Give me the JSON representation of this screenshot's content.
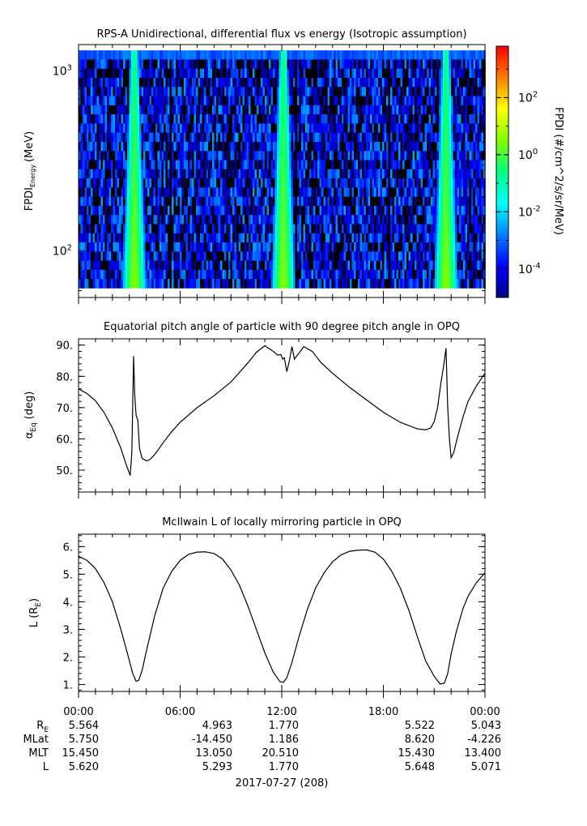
{
  "chart_data": [
    {
      "type": "heatmap",
      "title": "RPS-A Unidirectional, differential flux vs energy (Isotropic assumption)",
      "ylabel_main": "FPDI",
      "ylabel_sub": "Energy",
      "ylabel_unit": "(MeV)",
      "yscale": "log",
      "ylim": [
        55,
        1400
      ],
      "yticks": [
        {
          "value": 100,
          "base": "10",
          "exp": "2"
        },
        {
          "value": 1000,
          "base": "10",
          "exp": "3"
        }
      ],
      "colorbar": {
        "label": "FPDI (#/cm^2/s/sr/MeV)",
        "scale": "log",
        "range_exp": [
          -5,
          3.8
        ],
        "ticks": [
          {
            "exp": -4,
            "base": "10",
            "label_exp": "-4"
          },
          {
            "exp": -2,
            "base": "10",
            "label_exp": "-2"
          },
          {
            "exp": 0,
            "base": "10",
            "label_exp": "0"
          },
          {
            "exp": 2,
            "base": "10",
            "label_exp": "2"
          }
        ],
        "colormap": [
          "#000080",
          "#0000ff",
          "#0080ff",
          "#00ffff",
          "#00ff80",
          "#80ff00",
          "#ffff00",
          "#ff8000",
          "#ff0000"
        ]
      },
      "features": [
        {
          "name": "radiation belt pass 1",
          "center_hour": 3.3,
          "peak_exp": 0.5
        },
        {
          "name": "radiation belt pass 2",
          "center_hour": 12.1,
          "peak_exp": 0.5
        },
        {
          "name": "radiation belt pass 3",
          "center_hour": 21.7,
          "peak_exp": 0.5
        }
      ],
      "noise_exp_range": [
        -5,
        -2.5
      ]
    },
    {
      "type": "line",
      "title": "Equatorial pitch angle of particle with 90 degree pitch angle in OPQ",
      "ylabel": "α",
      "ylabel_sub": "Eq",
      "ylabel_unit": "(deg)",
      "ylim": [
        43,
        92
      ],
      "yticks": [
        "50.",
        "60.",
        "70.",
        "80.",
        "90."
      ],
      "ytick_values": [
        50,
        60,
        70,
        80,
        90
      ],
      "series": [
        {
          "x": [
            0,
            0.5,
            1.0,
            1.5,
            2.0,
            2.5,
            2.8,
            3.05,
            3.15,
            3.25,
            3.32,
            3.4,
            3.5,
            3.6,
            3.75,
            4.0,
            4.2,
            4.5,
            5.0,
            5.5,
            6.0,
            7.0,
            8.0,
            9.0,
            10.0,
            10.5,
            11.0,
            11.5,
            11.75,
            11.95,
            12.05,
            12.15,
            12.3,
            12.45,
            12.6,
            12.75,
            12.85,
            13.0,
            13.3,
            13.8,
            14.3,
            15.0,
            16.0,
            17.0,
            18.0,
            19.0,
            20.0,
            20.5,
            20.8,
            21.0,
            21.2,
            21.4,
            21.55,
            21.7,
            21.8,
            21.9,
            22.0,
            22.15,
            22.35,
            22.7,
            23.0,
            23.5,
            24.0
          ],
          "y": [
            76.0,
            74.5,
            72.2,
            68.5,
            63.5,
            57.0,
            52.0,
            48.3,
            56.0,
            86.5,
            74.0,
            67.5,
            66.0,
            57.0,
            53.8,
            53.0,
            53.3,
            55.0,
            58.8,
            62.3,
            65.3,
            70.0,
            73.8,
            78.2,
            84.3,
            87.7,
            89.8,
            88.0,
            86.8,
            87.0,
            85.5,
            86.0,
            81.5,
            85.0,
            89.5,
            85.5,
            86.3,
            87.3,
            89.5,
            88.0,
            84.5,
            81.0,
            76.5,
            72.5,
            68.5,
            65.3,
            63.2,
            62.9,
            63.5,
            65.5,
            70.0,
            78.0,
            83.0,
            89.0,
            70.0,
            60.0,
            54.0,
            55.5,
            60.0,
            67.0,
            72.0,
            77.0,
            81.0
          ]
        }
      ]
    },
    {
      "type": "line",
      "title": "McIlwain L of locally mirroring particle in OPQ",
      "ylabel": "L (R",
      "ylabel_sub": "E",
      "ylabel_unit": ")",
      "ylim": [
        0.75,
        6.45
      ],
      "yticks": [
        "1.",
        "2.",
        "3.",
        "4.",
        "5.",
        "6."
      ],
      "ytick_values": [
        1,
        2,
        3,
        4,
        5,
        6
      ],
      "series": [
        {
          "x": [
            0,
            0.5,
            1.0,
            1.5,
            2.0,
            2.5,
            2.9,
            3.2,
            3.4,
            3.55,
            3.75,
            4.0,
            4.5,
            5.0,
            5.5,
            6.0,
            6.5,
            7.0,
            7.5,
            8.0,
            8.5,
            9.0,
            9.5,
            10.0,
            10.5,
            11.0,
            11.5,
            11.9,
            12.1,
            12.3,
            12.6,
            13.0,
            13.5,
            14.0,
            14.5,
            15.0,
            15.5,
            16.0,
            16.5,
            17.0,
            17.5,
            18.0,
            18.5,
            19.0,
            19.5,
            20.0,
            20.5,
            21.0,
            21.35,
            21.6,
            21.8,
            22.0,
            22.3,
            22.7,
            23.0,
            23.5,
            24.0
          ],
          "y": [
            5.65,
            5.5,
            5.2,
            4.7,
            4.0,
            3.0,
            2.1,
            1.4,
            1.12,
            1.15,
            1.5,
            2.2,
            3.5,
            4.5,
            5.1,
            5.5,
            5.72,
            5.8,
            5.81,
            5.75,
            5.55,
            5.15,
            4.6,
            3.85,
            3.0,
            2.15,
            1.45,
            1.1,
            1.08,
            1.25,
            1.8,
            2.7,
            3.7,
            4.5,
            5.05,
            5.45,
            5.7,
            5.83,
            5.87,
            5.88,
            5.8,
            5.55,
            5.1,
            4.5,
            3.7,
            2.75,
            1.85,
            1.3,
            1.02,
            1.05,
            1.4,
            2.1,
            2.9,
            3.75,
            4.2,
            4.7,
            5.05
          ]
        }
      ]
    }
  ],
  "xaxis": {
    "tick_labels": [
      "00:00",
      "06:00",
      "12:00",
      "18:00",
      "00:00"
    ],
    "tick_hours": [
      0,
      6,
      12,
      18,
      24
    ],
    "range_hours": [
      0,
      24
    ]
  },
  "footer": {
    "row_labels": [
      "R",
      "MLat",
      "MLT",
      "L"
    ],
    "re_subscript": "E",
    "rows": [
      [
        "5.564",
        "4.963",
        "1.770",
        "5.522",
        "5.043"
      ],
      [
        "5.750",
        "-14.450",
        "1.186",
        "8.620",
        "-4.226"
      ],
      [
        "15.450",
        "13.050",
        "20.510",
        "15.430",
        "13.400"
      ],
      [
        "5.620",
        "5.293",
        "1.770",
        "5.648",
        "5.071"
      ]
    ],
    "date": "2017-07-27 (208)"
  }
}
